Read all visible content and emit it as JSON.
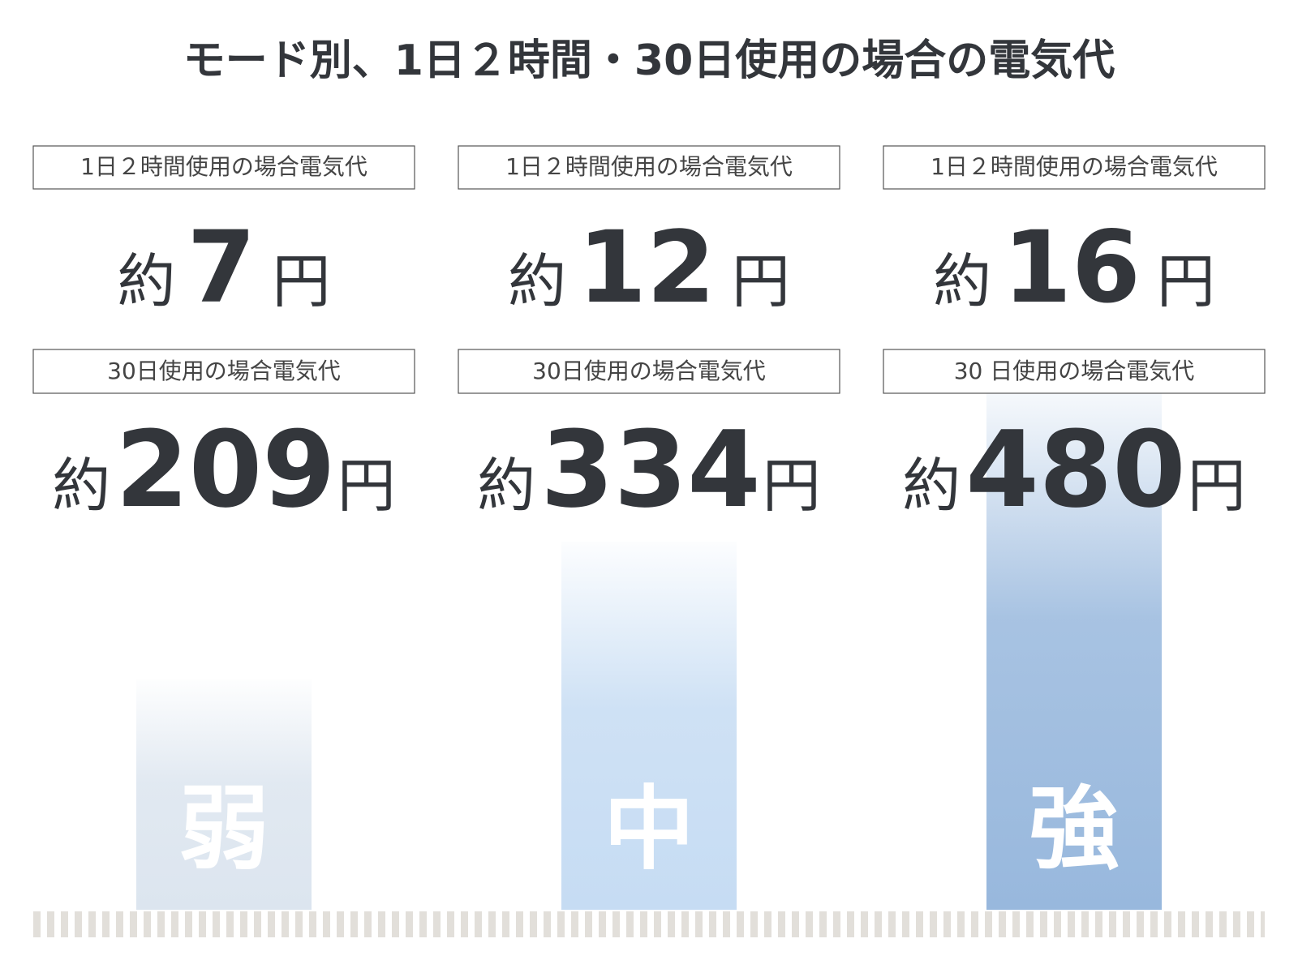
{
  "title": "モード別、1日２時間・30日使用の場合の電気代",
  "modes": [
    {
      "name": "弱",
      "color": "#dce5ef",
      "daily_label": "1日２時間使用の場合電気代",
      "daily_prefix": "約",
      "daily_value": 7,
      "daily_unit": "円",
      "monthly_label": "30日使用の場合電気代",
      "monthly_prefix": "約",
      "monthly_value": 209,
      "monthly_unit": "円"
    },
    {
      "name": "中",
      "color": "#c6dcf3",
      "daily_label": "1日２時間使用の場合電気代",
      "daily_prefix": "約",
      "daily_value": 12,
      "daily_unit": "円",
      "monthly_label": "30日使用の場合電気代",
      "monthly_prefix": "約",
      "monthly_value": 334,
      "monthly_unit": "円"
    },
    {
      "name": "強",
      "color": "#98b8dd",
      "daily_label": "1日２時間使用の場合電気代",
      "daily_prefix": "約",
      "daily_value": 16,
      "daily_unit": "円",
      "monthly_label": "30 日使用の場合電気代",
      "monthly_prefix": "約",
      "monthly_value": 480,
      "monthly_unit": "円"
    }
  ]
}
